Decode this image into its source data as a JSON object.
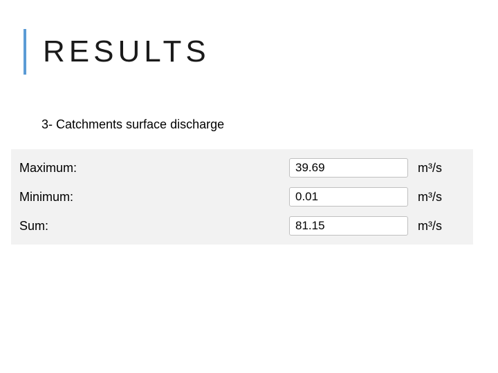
{
  "title": "RESULTS",
  "subtitle": "3- Catchments surface discharge",
  "panel_bg": "#f2f2f2",
  "field_border": "#bfbfbf",
  "accent_bar": "#5b9bd5",
  "rows": [
    {
      "label": "Maximum:",
      "value": "39.69",
      "unit": "m³/s"
    },
    {
      "label": "Minimum:",
      "value": "0.01",
      "unit": "m³/s"
    },
    {
      "label": "Sum:",
      "value": "81.15",
      "unit": "m³/s"
    }
  ]
}
